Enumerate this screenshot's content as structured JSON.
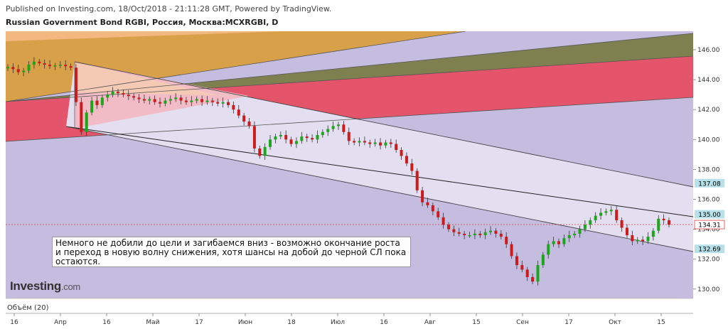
{
  "header": {
    "published": "Published on Investing.com, 18/Oct/2018 - 21:11:28 GMT, Powered by TradingView.",
    "symbol": "Russian Government Bond RGBI, Россия, Москва:MCXRGBI, D"
  },
  "annotation": "Немного не добили до цели и загибаемся вниз - возможно окончание роста и переход в новую волну снижения, хотя шансы на добой до черной СЛ пока остаются.",
  "logo": {
    "main": "Investing",
    "suffix": ".com"
  },
  "volume_label": "Объём (20)",
  "colors": {
    "up": "#1aa71a",
    "down": "#cc1b1b",
    "accent_line": "#d94040",
    "lavender": "#c5bde0",
    "salmon": "#e4546a",
    "olive": "#7f8050",
    "gold": "#d8a048",
    "badge": "#b7e0e8"
  },
  "chart_data": {
    "type": "candlestick",
    "y_axis": {
      "range": [
        129,
        147.5
      ],
      "ticks": [
        130,
        132,
        134,
        136,
        138,
        140,
        142,
        144,
        146
      ],
      "tick_labels": [
        "130.00",
        "132.00",
        "134.00",
        "136.00",
        "138.00",
        "140.00",
        "142.00",
        "144.00",
        "146.00"
      ]
    },
    "x_axis": {
      "labels": [
        "16",
        "Апр",
        "16",
        "Май",
        "17",
        "Июн",
        "18",
        "Июл",
        "16",
        "Авг",
        "15",
        "Сен",
        "17",
        "Окт",
        "15"
      ]
    },
    "price_labels": [
      {
        "value": 137.08,
        "text": "137.08"
      },
      {
        "value": 135.0,
        "text": "135.00"
      },
      {
        "value": 134.31,
        "text": "134.31",
        "current": true
      },
      {
        "value": 132.69,
        "text": "132.69"
      }
    ],
    "closes": [
      144.85,
      144.7,
      144.5,
      144.6,
      145.0,
      145.2,
      145.1,
      145.0,
      144.9,
      144.95,
      145.0,
      144.9,
      144.8,
      142.5,
      140.5,
      141.8,
      142.6,
      142.3,
      142.8,
      143.0,
      143.2,
      143.1,
      143.0,
      142.9,
      142.8,
      142.7,
      142.6,
      142.7,
      142.5,
      142.4,
      142.6,
      142.7,
      142.8,
      142.6,
      142.5,
      142.6,
      142.7,
      142.5,
      142.6,
      142.5,
      142.4,
      142.5,
      142.3,
      142.0,
      141.6,
      141.2,
      140.9,
      139.4,
      138.9,
      139.5,
      140.0,
      140.2,
      140.3,
      140.0,
      139.7,
      139.9,
      140.2,
      140.1,
      140.0,
      140.3,
      140.5,
      140.7,
      140.9,
      141.0,
      140.5,
      139.9,
      139.8,
      139.9,
      139.8,
      139.7,
      139.8,
      139.6,
      139.8,
      139.7,
      139.3,
      138.9,
      138.4,
      137.9,
      136.6,
      135.8,
      135.6,
      135.2,
      134.8,
      134.3,
      134.0,
      133.8,
      133.7,
      133.6,
      133.6,
      133.7,
      133.6,
      133.8,
      133.9,
      133.7,
      133.5,
      133.0,
      132.2,
      131.6,
      131.3,
      130.8,
      130.5,
      131.6,
      132.3,
      133.0,
      133.2,
      133.0,
      133.4,
      133.6,
      133.7,
      134.0,
      134.3,
      134.6,
      134.9,
      135.1,
      135.2,
      135.3,
      134.6,
      134.1,
      133.6,
      133.2,
      133.3,
      133.2,
      133.5,
      133.9,
      134.7,
      134.6,
      134.3
    ]
  }
}
